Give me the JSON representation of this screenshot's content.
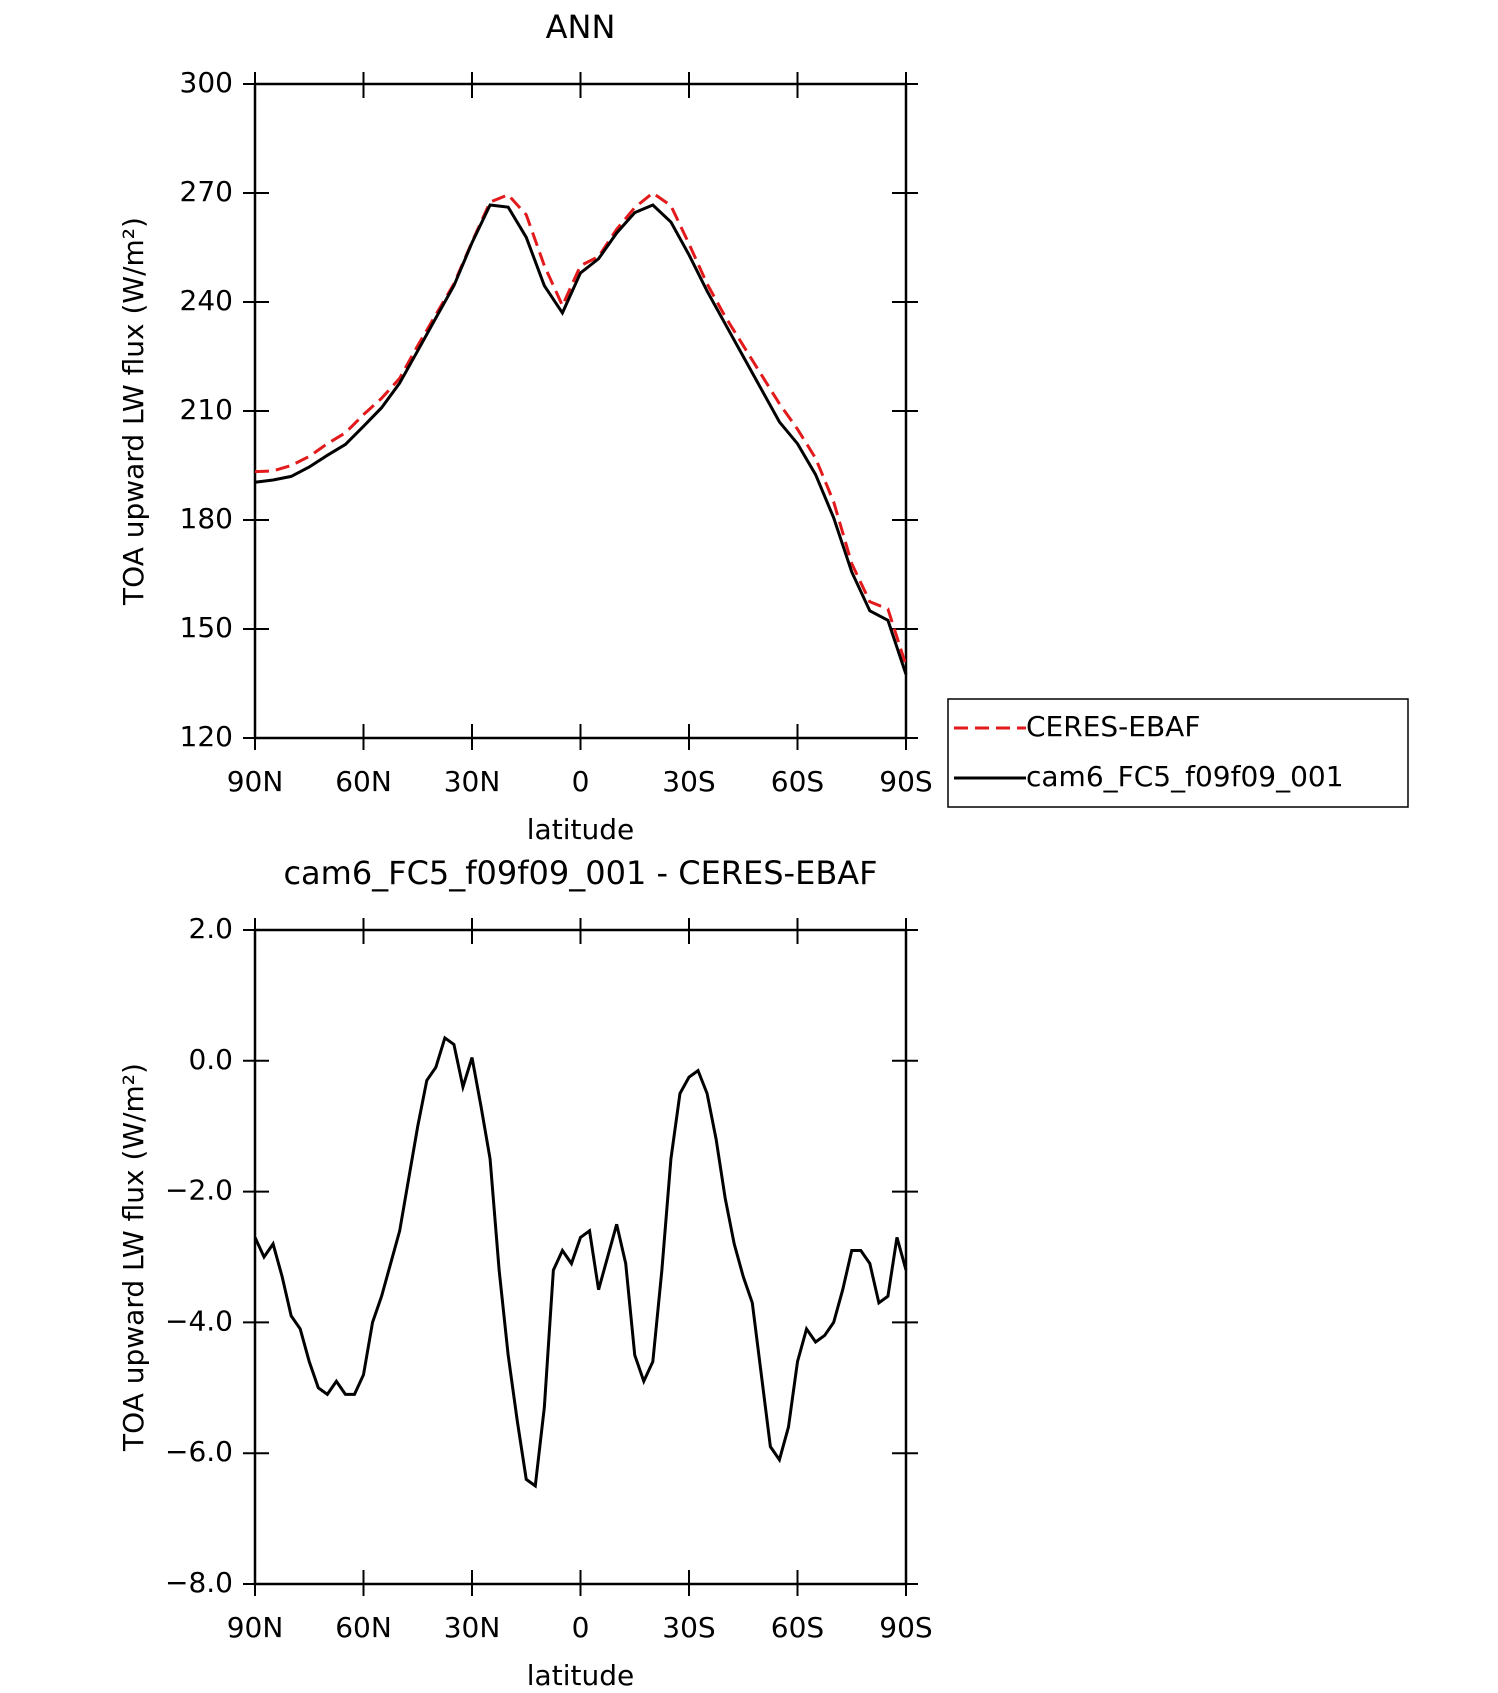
{
  "chart_data": [
    {
      "type": "line",
      "title": "ANN",
      "x_label": "latitude",
      "y_label": "TOA upward LW flux (W/m²)",
      "x": [
        90,
        85,
        80,
        75,
        70,
        65,
        60,
        55,
        50,
        45,
        40,
        35,
        30,
        25,
        20,
        15,
        10,
        5,
        0,
        -5,
        -10,
        -15,
        -20,
        -25,
        -30,
        -35,
        -40,
        -45,
        -50,
        -55,
        -60,
        -65,
        -70,
        -75,
        -80,
        -85,
        -90
      ],
      "xlim": [
        90,
        -90
      ],
      "xticks": [
        {
          "value": 90,
          "label": "90N"
        },
        {
          "value": 60,
          "label": "60N"
        },
        {
          "value": 30,
          "label": "30N"
        },
        0,
        {
          "value": -30,
          "label": "30S"
        },
        {
          "value": -60,
          "label": "60S"
        },
        {
          "value": -90,
          "label": "90S"
        }
      ],
      "ylim": [
        120,
        300
      ],
      "yticks": [
        120,
        150,
        180,
        210,
        240,
        270,
        300
      ],
      "legend": "right",
      "series": [
        {
          "name": "CERES-EBAF",
          "color": "#e31a1c",
          "style": "dashed",
          "values": [
            193.3,
            193.5,
            195,
            197.5,
            201,
            204,
            209,
            213.5,
            219,
            228,
            236.5,
            245,
            256.5,
            267.5,
            269.5,
            264,
            250,
            239,
            250,
            252.5,
            260,
            266,
            270,
            266.5,
            256,
            245,
            236,
            228,
            220,
            212,
            205,
            197,
            185,
            168,
            157.5,
            155.5,
            140
          ]
        },
        {
          "name": "cam6_FC5_f09f09_001",
          "color": "#000000",
          "style": "solid",
          "values": [
            190.4,
            191,
            192,
            194.6,
            197.8,
            200.8,
            205.8,
            210.9,
            217.7,
            226.6,
            235.6,
            244.5,
            256.3,
            266.7,
            266.1,
            257.8,
            244.5,
            237,
            248,
            251.9,
            259,
            264.6,
            266.7,
            262,
            253,
            243,
            234,
            225,
            216,
            207,
            201,
            192.5,
            180.6,
            165.7,
            155,
            152.4,
            137.5
          ]
        }
      ]
    },
    {
      "type": "line",
      "title": "cam6_FC5_f09f09_001 - CERES-EBAF",
      "x_label": "latitude",
      "y_label": "TOA upward LW flux (W/m²)",
      "x": [
        90,
        87.5,
        85,
        82.5,
        80,
        77.5,
        75,
        72.5,
        70,
        67.5,
        65,
        62.5,
        60,
        57.5,
        55,
        52.5,
        50,
        47.5,
        45,
        42.5,
        40,
        37.5,
        35,
        32.5,
        30,
        27.5,
        25,
        22.5,
        20,
        17.5,
        15,
        12.5,
        10,
        7.5,
        5,
        2.5,
        0,
        -2.5,
        -5,
        -7.5,
        -10,
        -12.5,
        -15,
        -17.5,
        -20,
        -22.5,
        -25,
        -27.5,
        -30,
        -32.5,
        -35,
        -37.5,
        -40,
        -42.5,
        -45,
        -47.5,
        -50,
        -52.5,
        -55,
        -57.5,
        -60,
        -62.5,
        -65,
        -67.5,
        -70,
        -72.5,
        -75,
        -77.5,
        -80,
        -82.5,
        -85,
        -87.5,
        -90
      ],
      "xlim": [
        90,
        -90
      ],
      "xticks": [
        {
          "value": 90,
          "label": "90N"
        },
        {
          "value": 60,
          "label": "60N"
        },
        {
          "value": 30,
          "label": "30N"
        },
        0,
        {
          "value": -30,
          "label": "30S"
        },
        {
          "value": -60,
          "label": "60S"
        },
        {
          "value": -90,
          "label": "90S"
        }
      ],
      "ylim": [
        -8,
        2
      ],
      "yticks": [
        {
          "value": -8,
          "label": "−8.0"
        },
        {
          "value": -6,
          "label": "−6.0"
        },
        {
          "value": -4,
          "label": "−4.0"
        },
        {
          "value": -2,
          "label": "−2.0"
        },
        {
          "value": 0,
          "label": "0.0"
        },
        {
          "value": 2,
          "label": "2.0"
        }
      ],
      "series": [
        {
          "name": "cam6_FC5_f09f09_001 - CERES-EBAF",
          "color": "#000000",
          "style": "solid",
          "values": [
            -2.7,
            -3.0,
            -2.8,
            -3.3,
            -3.9,
            -4.1,
            -4.6,
            -5.0,
            -5.1,
            -4.9,
            -5.1,
            -5.1,
            -4.8,
            -4.0,
            -3.6,
            -3.1,
            -2.6,
            -1.8,
            -1.0,
            -0.3,
            -0.1,
            0.35,
            0.25,
            -0.4,
            0.05,
            -0.7,
            -1.5,
            -3.2,
            -4.5,
            -5.5,
            -6.4,
            -6.5,
            -5.3,
            -3.2,
            -2.9,
            -3.1,
            -2.7,
            -2.6,
            -3.5,
            -3.0,
            -2.5,
            -3.1,
            -4.5,
            -4.9,
            -4.6,
            -3.2,
            -1.5,
            -0.5,
            -0.25,
            -0.15,
            -0.5,
            -1.2,
            -2.1,
            -2.8,
            -3.3,
            -3.7,
            -4.8,
            -5.9,
            -6.1,
            -5.6,
            -4.6,
            -4.1,
            -4.3,
            -4.2,
            -4.0,
            -3.5,
            -2.9,
            -2.9,
            -3.1,
            -3.7,
            -3.6,
            -2.7,
            -3.2
          ]
        }
      ]
    }
  ]
}
